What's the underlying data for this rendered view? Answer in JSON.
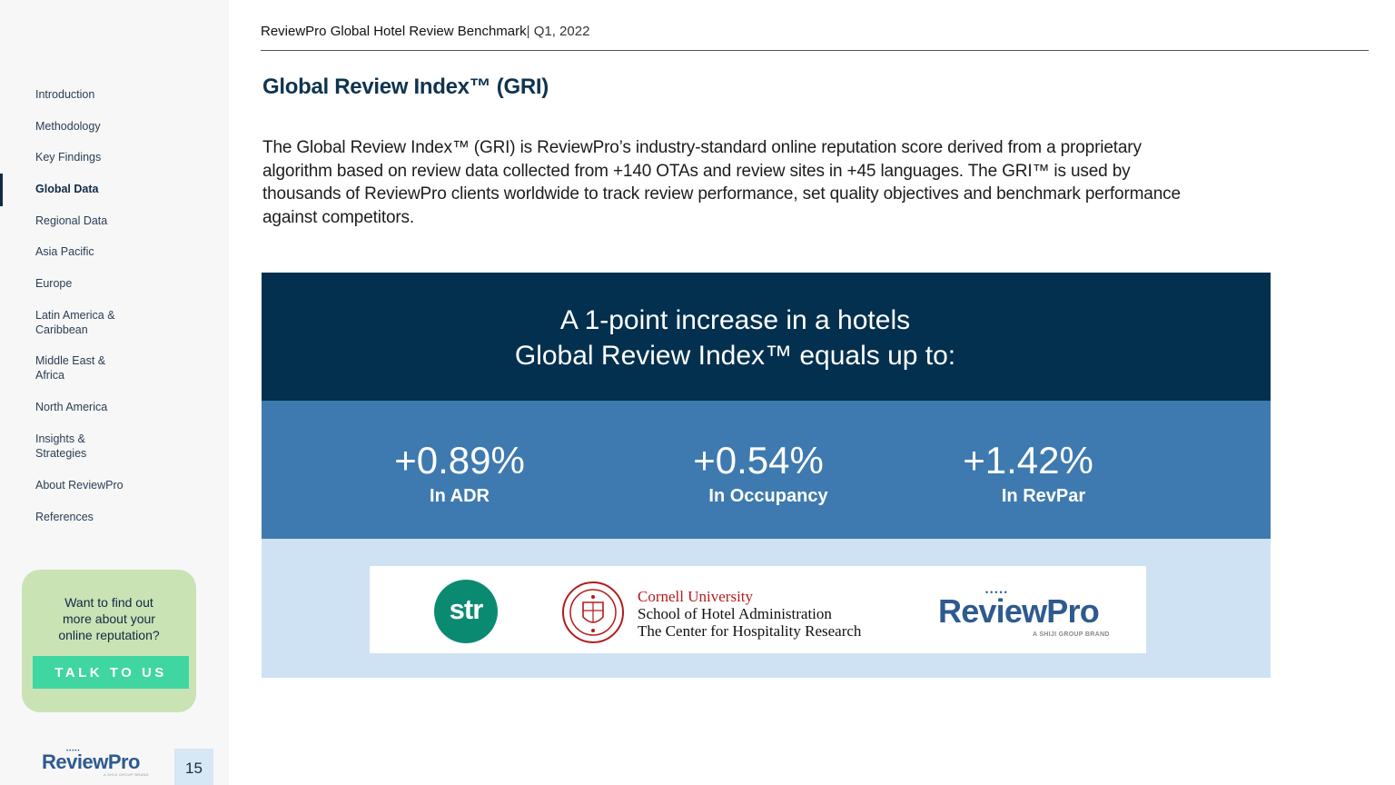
{
  "header": {
    "report_title": "ReviewPro Global Hotel Review Benchmark",
    "separator": "|",
    "period": "Q1, 2022"
  },
  "sidebar": {
    "items": [
      {
        "label": "Introduction",
        "active": false
      },
      {
        "label": "Methodology",
        "active": false
      },
      {
        "label": "Key Findings",
        "active": false
      },
      {
        "label": "Global Data",
        "active": true
      },
      {
        "label": "Regional Data",
        "active": false
      },
      {
        "label": "Asia Pacific",
        "active": false
      },
      {
        "label": "Europe",
        "active": false
      },
      {
        "label": "Latin America & Caribbean",
        "active": false
      },
      {
        "label": "Middle East & Africa",
        "active": false
      },
      {
        "label": "North America",
        "active": false
      },
      {
        "label": "Insights & Strategies",
        "active": false
      },
      {
        "label": "About ReviewPro",
        "active": false
      },
      {
        "label": "References",
        "active": false
      }
    ],
    "cta": {
      "text_line1": "Want to find out",
      "text_line2": "more about your",
      "text_line3": "online reputation?",
      "button_label": "TALK TO US"
    },
    "logo": {
      "dots": "•••••",
      "text": "ReviewPro",
      "sub": "A SHIJI GROUP BRAND"
    },
    "page_number": "15"
  },
  "main": {
    "title": "Global Review Index™ (GRI)",
    "intro_line1": "The Global Review Index™ (GRI) is ReviewPro’s industry-standard online reputation score derived from a proprietary",
    "intro_line2": "algorithm based on review data collected from +140 OTAs and review sites in +45 languages. The GRI™ is used by",
    "intro_line3": "thousands of ReviewPro clients worldwide to track review performance, set quality objectives and benchmark performance",
    "intro_line4": "against competitors.",
    "panel": {
      "headline_line1": "A 1-point increase in a hotels",
      "headline_line2": "Global Review Index™ equals up to:",
      "stats": [
        {
          "value": "+0.89%",
          "label": "In ADR"
        },
        {
          "value": "+0.54%",
          "label": "In Occupancy"
        },
        {
          "value": "+1.42%",
          "label": "In RevPar"
        }
      ],
      "logos": {
        "str": "str",
        "cornell_line1": "Cornell University",
        "cornell_line2": "School of Hotel Administration",
        "cornell_line3": "The Center for Hospitality Research",
        "reviewpro_dots": "•••••",
        "reviewpro_text": "ReviewPro",
        "reviewpro_sub": "A SHIJI GROUP BRAND"
      }
    }
  },
  "colors": {
    "navy": "#02304e",
    "mid_blue": "#3e7aaf",
    "light_blue": "#cfe2f3",
    "cta_green": "#c9e3b5",
    "button_green": "#3fd6a1",
    "str_green": "#0b8a72",
    "cornell_red": "#b31b1b",
    "reviewpro_blue": "#2e5a8f"
  }
}
